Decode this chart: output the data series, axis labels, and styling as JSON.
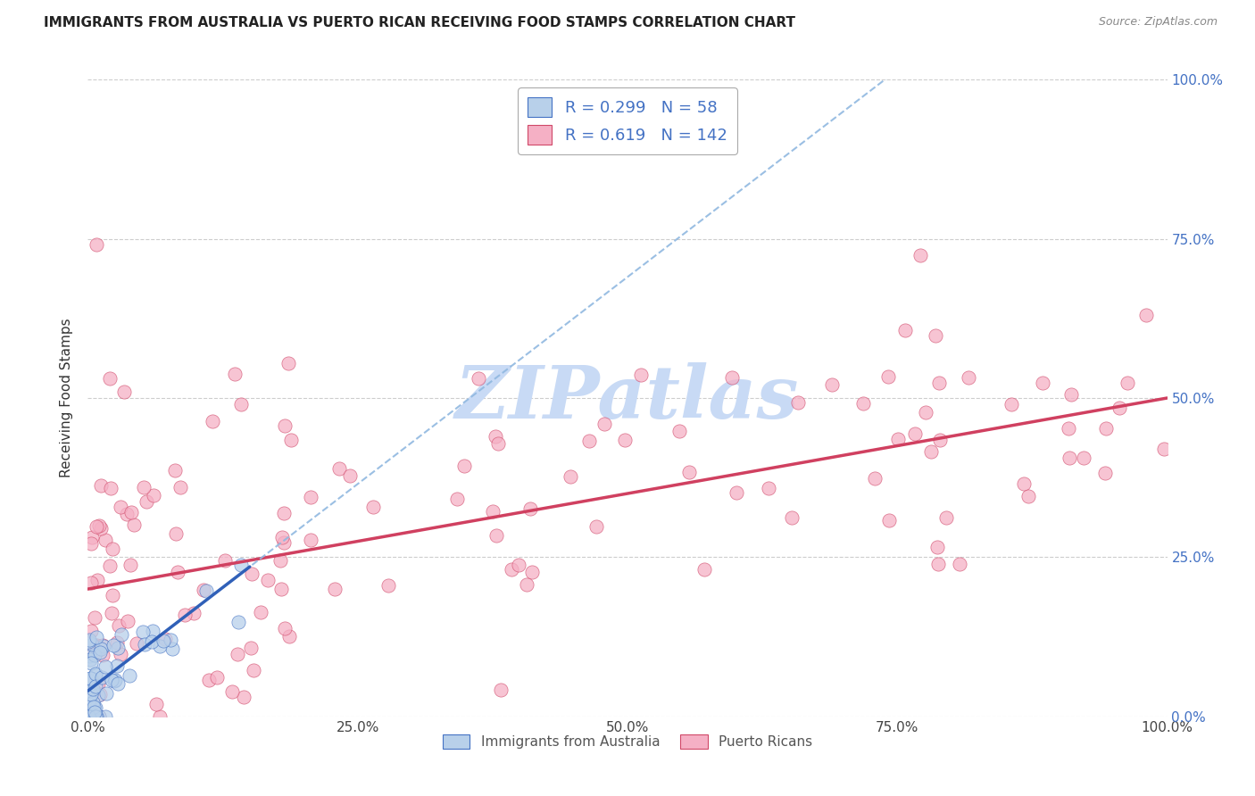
{
  "title": "IMMIGRANTS FROM AUSTRALIA VS PUERTO RICAN RECEIVING FOOD STAMPS CORRELATION CHART",
  "source": "Source: ZipAtlas.com",
  "ylabel": "Receiving Food Stamps",
  "ytick_labels": [
    "0.0%",
    "25.0%",
    "50.0%",
    "75.0%",
    "100.0%"
  ],
  "ytick_values": [
    0,
    25,
    50,
    75,
    100
  ],
  "xtick_labels": [
    "0.0%",
    "25.0%",
    "50.0%",
    "75.0%",
    "100.0%"
  ],
  "xtick_values": [
    0,
    25,
    50,
    75,
    100
  ],
  "xlim": [
    0,
    100
  ],
  "ylim": [
    0,
    100
  ],
  "R_australia": 0.299,
  "N_australia": 58,
  "R_puerto_rican": 0.619,
  "N_puerto_rican": 142,
  "color_australia_fill": "#b8d0ea",
  "color_puerto_rican_fill": "#f5b0c5",
  "color_australia_edge": "#4472c4",
  "color_puerto_rican_edge": "#d04868",
  "line_color_australia_solid": "#3060b8",
  "line_color_australia_dash": "#90b8e0",
  "line_color_puerto_rican": "#d04060",
  "watermark_text": "ZIPatlas",
  "watermark_color": "#c8daf5",
  "legend_labels": [
    "Immigrants from Australia",
    "Puerto Ricans"
  ],
  "legend_R_N_color": "#4472c4",
  "title_fontsize": 11,
  "source_fontsize": 9,
  "aus_trend_intercept": 4.0,
  "aus_trend_slope": 1.3,
  "pr_trend_intercept": 20.0,
  "pr_trend_slope": 0.3
}
